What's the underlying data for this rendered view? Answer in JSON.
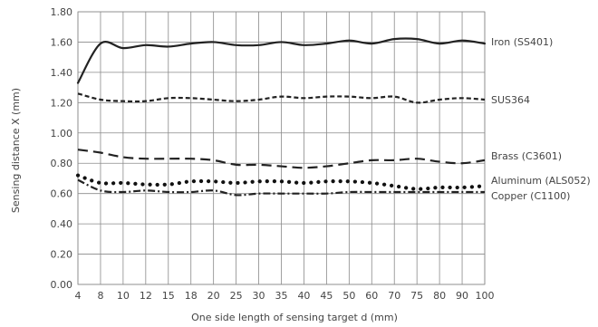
{
  "chart_data": {
    "type": "line",
    "xlabel": "One side length of sensing target d (mm)",
    "ylabel": "Sensing distance X (mm)",
    "ylim": [
      0.0,
      1.8
    ],
    "yticks": [
      "0.00",
      "0.20",
      "0.40",
      "0.60",
      "0.80",
      "1.00",
      "1.20",
      "1.40",
      "1.60",
      "1.80"
    ],
    "categories": [
      "4",
      "8",
      "10",
      "12",
      "15",
      "18",
      "20",
      "25",
      "30",
      "35",
      "40",
      "45",
      "50",
      "60",
      "70",
      "75",
      "80",
      "90",
      "100"
    ],
    "grid": true,
    "series": [
      {
        "name": "Iron (SS401)",
        "style": "solid",
        "color": "#222222",
        "values": [
          1.33,
          1.59,
          1.56,
          1.58,
          1.57,
          1.59,
          1.6,
          1.58,
          1.58,
          1.6,
          1.58,
          1.59,
          1.61,
          1.59,
          1.62,
          1.62,
          1.59,
          1.61,
          1.59
        ]
      },
      {
        "name": "SUS364",
        "style": "short-dash",
        "color": "#222222",
        "values": [
          1.26,
          1.22,
          1.21,
          1.21,
          1.23,
          1.23,
          1.22,
          1.21,
          1.22,
          1.24,
          1.23,
          1.24,
          1.24,
          1.23,
          1.24,
          1.2,
          1.22,
          1.23,
          1.22
        ]
      },
      {
        "name": "Brass (C3601)",
        "style": "long-dash",
        "color": "#222222",
        "values": [
          0.89,
          0.87,
          0.84,
          0.83,
          0.83,
          0.83,
          0.82,
          0.79,
          0.79,
          0.78,
          0.77,
          0.78,
          0.8,
          0.82,
          0.82,
          0.83,
          0.81,
          0.8,
          0.82
        ]
      },
      {
        "name": "Aluminum (ALS052)",
        "style": "dotted",
        "color": "#111111",
        "values": [
          0.72,
          0.67,
          0.67,
          0.66,
          0.66,
          0.68,
          0.68,
          0.67,
          0.68,
          0.68,
          0.67,
          0.68,
          0.68,
          0.67,
          0.65,
          0.63,
          0.64,
          0.64,
          0.65
        ]
      },
      {
        "name": "Copper (C1100)",
        "style": "dash-dot",
        "color": "#222222",
        "values": [
          0.69,
          0.62,
          0.61,
          0.62,
          0.61,
          0.61,
          0.62,
          0.59,
          0.6,
          0.6,
          0.6,
          0.6,
          0.61,
          0.61,
          0.61,
          0.61,
          0.61,
          0.61,
          0.61
        ]
      }
    ]
  }
}
